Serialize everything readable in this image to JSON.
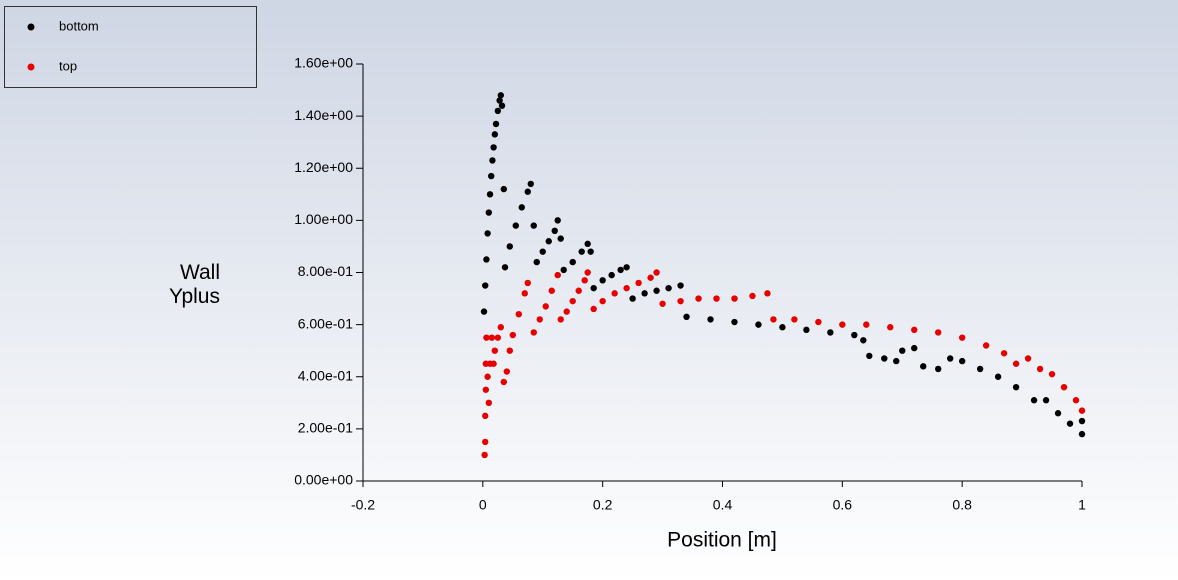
{
  "chart_data": {
    "type": "scatter",
    "xlabel": "Position [m]",
    "ylabel": "Wall Yplus",
    "xlim": [
      -0.2,
      1
    ],
    "xticks": [
      -0.2,
      0,
      0.2,
      0.4,
      0.6,
      0.8,
      1
    ],
    "ylim": [
      0,
      1.6
    ],
    "yticks": [
      {
        "value": 0,
        "label": "0.00e+00"
      },
      {
        "value": 0.2,
        "label": "2.00e-01"
      },
      {
        "value": 0.4,
        "label": "4.00e-01"
      },
      {
        "value": 0.6,
        "label": "6.00e-01"
      },
      {
        "value": 0.8,
        "label": "8.00e-01"
      },
      {
        "value": 1,
        "label": "1.00e+00"
      },
      {
        "value": 1.2,
        "label": "1.20e+00"
      },
      {
        "value": 1.4,
        "label": "1.40e+00"
      },
      {
        "value": 1.6,
        "label": "1.60e+00"
      }
    ],
    "series": [
      {
        "name": "bottom",
        "color": "#000000",
        "x": [
          0.002,
          0.004,
          0.006,
          0.008,
          0.01,
          0.012,
          0.014,
          0.016,
          0.018,
          0.02,
          0.022,
          0.025,
          0.028,
          0.03,
          0.032,
          0.035,
          0.037,
          0.045,
          0.055,
          0.065,
          0.075,
          0.08,
          0.085,
          0.09,
          0.1,
          0.11,
          0.12,
          0.125,
          0.13,
          0.135,
          0.15,
          0.165,
          0.175,
          0.18,
          0.185,
          0.2,
          0.215,
          0.23,
          0.24,
          0.25,
          0.27,
          0.29,
          0.31,
          0.33,
          0.34,
          0.38,
          0.42,
          0.46,
          0.5,
          0.54,
          0.58,
          0.62,
          0.635,
          0.645,
          0.67,
          0.69,
          0.7,
          0.72,
          0.735,
          0.76,
          0.78,
          0.8,
          0.83,
          0.86,
          0.89,
          0.92,
          0.94,
          0.96,
          0.98,
          1.0,
          1.0
        ],
        "values": [
          0.65,
          0.75,
          0.85,
          0.95,
          1.03,
          1.1,
          1.17,
          1.23,
          1.28,
          1.33,
          1.37,
          1.42,
          1.46,
          1.48,
          1.44,
          1.12,
          0.82,
          0.9,
          0.98,
          1.05,
          1.11,
          1.14,
          0.98,
          0.84,
          0.88,
          0.92,
          0.96,
          1.0,
          0.93,
          0.81,
          0.84,
          0.88,
          0.91,
          0.88,
          0.74,
          0.77,
          0.79,
          0.81,
          0.82,
          0.7,
          0.72,
          0.73,
          0.74,
          0.75,
          0.63,
          0.62,
          0.61,
          0.6,
          0.59,
          0.58,
          0.57,
          0.56,
          0.54,
          0.48,
          0.47,
          0.46,
          0.5,
          0.51,
          0.44,
          0.43,
          0.47,
          0.46,
          0.43,
          0.4,
          0.36,
          0.31,
          0.31,
          0.26,
          0.22,
          0.18,
          0.23
        ]
      },
      {
        "name": "top",
        "color": "#e60000",
        "x": [
          0.003,
          0.004,
          0.004,
          0.005,
          0.005,
          0.006,
          0.008,
          0.01,
          0.012,
          0.015,
          0.018,
          0.02,
          0.025,
          0.03,
          0.035,
          0.04,
          0.045,
          0.05,
          0.06,
          0.07,
          0.075,
          0.085,
          0.095,
          0.105,
          0.115,
          0.125,
          0.13,
          0.14,
          0.15,
          0.16,
          0.17,
          0.175,
          0.185,
          0.2,
          0.22,
          0.24,
          0.26,
          0.28,
          0.29,
          0.3,
          0.33,
          0.36,
          0.39,
          0.42,
          0.45,
          0.475,
          0.485,
          0.52,
          0.56,
          0.6,
          0.64,
          0.68,
          0.72,
          0.76,
          0.8,
          0.84,
          0.87,
          0.89,
          0.91,
          0.93,
          0.95,
          0.97,
          0.99,
          1.0
        ],
        "values": [
          0.1,
          0.15,
          0.25,
          0.35,
          0.45,
          0.55,
          0.4,
          0.3,
          0.45,
          0.55,
          0.45,
          0.5,
          0.55,
          0.59,
          0.38,
          0.42,
          0.5,
          0.56,
          0.64,
          0.72,
          0.76,
          0.57,
          0.62,
          0.67,
          0.73,
          0.79,
          0.62,
          0.65,
          0.69,
          0.73,
          0.77,
          0.8,
          0.66,
          0.69,
          0.72,
          0.74,
          0.76,
          0.78,
          0.8,
          0.68,
          0.69,
          0.7,
          0.7,
          0.7,
          0.71,
          0.72,
          0.62,
          0.62,
          0.61,
          0.6,
          0.6,
          0.59,
          0.58,
          0.57,
          0.55,
          0.52,
          0.49,
          0.45,
          0.47,
          0.43,
          0.41,
          0.36,
          0.31,
          0.27
        ]
      }
    ]
  }
}
